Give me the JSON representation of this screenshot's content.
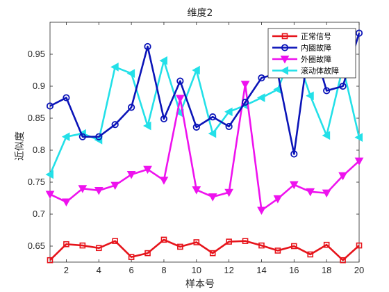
{
  "chart_data": {
    "type": "line",
    "title": "维度2",
    "xlabel": "样本号",
    "ylabel": "近似度",
    "xlim": [
      1,
      20
    ],
    "ylim": [
      0.625,
      1.0
    ],
    "xticks": [
      2,
      4,
      6,
      8,
      10,
      12,
      14,
      16,
      18,
      20
    ],
    "yticks": [
      0.65,
      0.7,
      0.75,
      0.8,
      0.85,
      0.9,
      0.95
    ],
    "ytick_labels": [
      "0.65",
      "0.7",
      "0.75",
      "0.8",
      "0.85",
      "0.9",
      "0.95"
    ],
    "grid": false,
    "legend_position": "top-right",
    "x": [
      1,
      2,
      3,
      4,
      5,
      6,
      7,
      8,
      9,
      10,
      11,
      12,
      13,
      14,
      15,
      16,
      17,
      18,
      19,
      20
    ],
    "series": [
      {
        "name": "正常信号",
        "color": "#e6141b",
        "marker": "square",
        "values": [
          0.628,
          0.653,
          0.651,
          0.647,
          0.658,
          0.633,
          0.639,
          0.66,
          0.649,
          0.656,
          0.639,
          0.657,
          0.658,
          0.651,
          0.643,
          0.65,
          0.637,
          0.652,
          0.628,
          0.651
        ]
      },
      {
        "name": "内圈故障",
        "color": "#0b14b8",
        "marker": "circle",
        "values": [
          0.869,
          0.882,
          0.821,
          0.821,
          0.84,
          0.867,
          0.962,
          0.849,
          0.908,
          0.836,
          0.852,
          0.837,
          0.875,
          0.913,
          0.92,
          0.794,
          0.98,
          0.893,
          0.9,
          0.983
        ]
      },
      {
        "name": "外圈故障",
        "color": "#ee12ee",
        "marker": "triangle-down",
        "values": [
          0.731,
          0.719,
          0.74,
          0.737,
          0.745,
          0.762,
          0.77,
          0.753,
          0.881,
          0.738,
          0.727,
          0.734,
          0.903,
          0.706,
          0.724,
          0.746,
          0.735,
          0.733,
          0.76,
          0.783
        ]
      },
      {
        "name": "滚动体故障",
        "color": "#23e0e8",
        "marker": "triangle-left",
        "values": [
          0.762,
          0.821,
          0.826,
          0.816,
          0.93,
          0.92,
          0.838,
          0.94,
          0.858,
          0.925,
          0.826,
          0.86,
          0.87,
          0.882,
          0.895,
          0.96,
          0.885,
          0.823,
          0.93,
          0.82
        ]
      }
    ]
  }
}
